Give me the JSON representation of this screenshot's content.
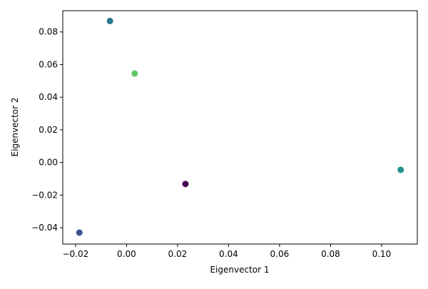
{
  "chart_data": {
    "type": "scatter",
    "title": "",
    "xlabel": "Eigenvector 1",
    "ylabel": "Eigenvector 2",
    "xlim": [
      -0.025,
      0.114
    ],
    "ylim": [
      -0.05,
      0.093
    ],
    "grid": false,
    "legend": "none",
    "x_ticks": [
      -0.02,
      0.0,
      0.02,
      0.04,
      0.06,
      0.08,
      0.1
    ],
    "x_tick_labels": [
      "−0.02",
      "0.00",
      "0.02",
      "0.04",
      "0.06",
      "0.08",
      "0.10"
    ],
    "y_ticks": [
      -0.04,
      -0.02,
      0.0,
      0.02,
      0.04,
      0.06,
      0.08
    ],
    "y_tick_labels": [
      "−0.04",
      "−0.02",
      "0.00",
      "0.02",
      "0.04",
      "0.06",
      "0.08"
    ],
    "points": [
      {
        "x": -0.0065,
        "y": 0.0867,
        "color": "#2a788e"
      },
      {
        "x": 0.0032,
        "y": 0.0545,
        "color": "#5ec962"
      },
      {
        "x": 0.1075,
        "y": -0.0045,
        "color": "#21918c"
      },
      {
        "x": 0.0231,
        "y": -0.0132,
        "color": "#440154"
      },
      {
        "x": -0.0185,
        "y": -0.043,
        "color": "#3b528b"
      }
    ]
  }
}
